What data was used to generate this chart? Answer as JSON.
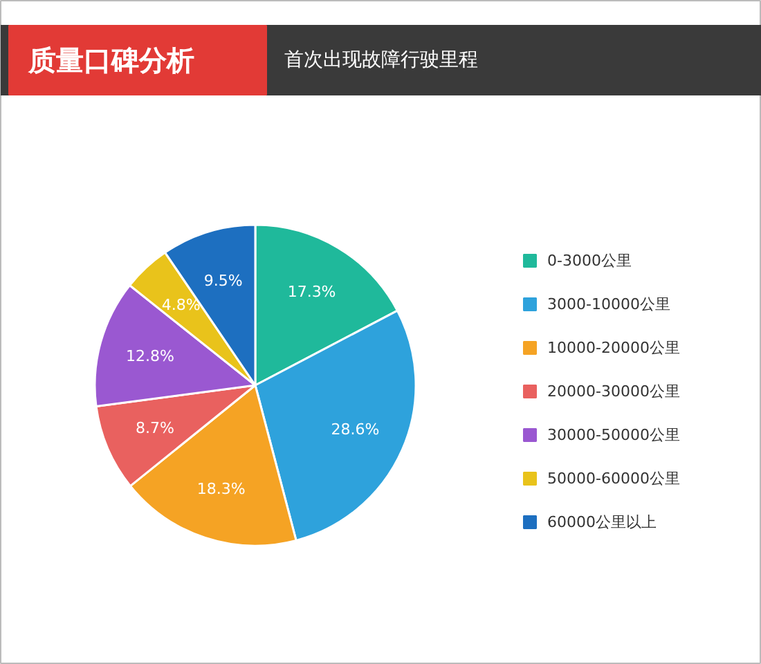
{
  "chart_data": {
    "type": "pie",
    "title": "质量口碑分析",
    "subtitle": "首次出现故障行驶里程",
    "categories": [
      "0-3000公里",
      "3000-10000公里",
      "10000-20000公里",
      "20000-30000公里",
      "30000-50000公里",
      "50000-60000公里",
      "60000公里以上"
    ],
    "values": [
      17.3,
      28.6,
      18.3,
      8.7,
      12.8,
      4.8,
      9.5
    ],
    "colors": [
      "#1fb99b",
      "#2ea2dc",
      "#f5a324",
      "#e9615f",
      "#9a58d1",
      "#e9c31b",
      "#1d6fc0"
    ],
    "value_labels": [
      "17.3%",
      "28.6%",
      "18.3%",
      "8.7%",
      "12.8%",
      "4.8%",
      "9.5%"
    ],
    "legend": "right"
  }
}
